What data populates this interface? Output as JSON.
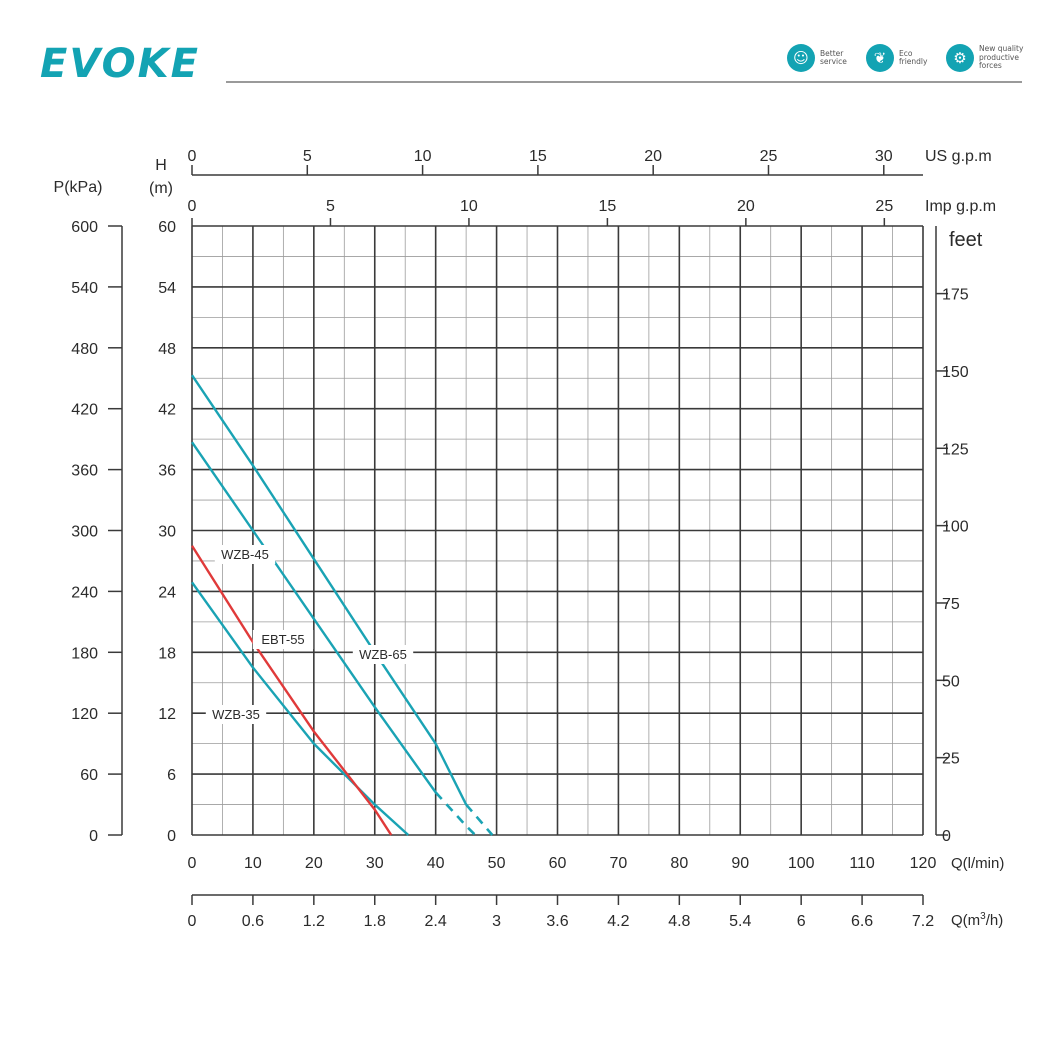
{
  "header": {
    "brand": "EVOKE",
    "features": [
      {
        "icon": "headset-icon",
        "label": "Better\nservice"
      },
      {
        "icon": "leaf-icon",
        "label": "Eco\nfriendly"
      },
      {
        "icon": "gear-icon",
        "label": "New quality\nproductive\nforces"
      }
    ],
    "brand_color": "#13a3b3"
  },
  "chart_data": {
    "type": "line",
    "grid": true,
    "axes": {
      "pressure": {
        "label": "P(kPa)",
        "ticks": [
          "600",
          "540",
          "480",
          "420",
          "360",
          "300",
          "240",
          "180",
          "120",
          "60",
          "0"
        ],
        "range": [
          0,
          600
        ]
      },
      "head": {
        "label_top": "H",
        "label_bottom": "(m)",
        "ticks": [
          "60",
          "54",
          "48",
          "42",
          "36",
          "30",
          "24",
          "18",
          "12",
          "6",
          "0"
        ],
        "range": [
          0,
          60
        ]
      },
      "feet": {
        "label": "feet",
        "ticks": [
          "175",
          "150",
          "125",
          "100",
          "75",
          "50",
          "25",
          "0"
        ]
      },
      "flow_lmin": {
        "label": "Q(l/min)",
        "ticks": [
          "0",
          "10",
          "20",
          "30",
          "40",
          "50",
          "60",
          "70",
          "80",
          "90",
          "100",
          "110",
          "120"
        ],
        "range": [
          0,
          120
        ]
      },
      "flow_m3h": {
        "label_prefix": "Q(m",
        "label_sup": "3",
        "label_suffix": "/h)",
        "ticks": [
          "0",
          "0.6",
          "1.2",
          "1.8",
          "2.4",
          "3",
          "3.6",
          "4.2",
          "4.8",
          "5.4",
          "6",
          "6.6",
          "7.2"
        ]
      },
      "us_gpm": {
        "label": "US  g.p.m",
        "ticks": [
          "0",
          "5",
          "10",
          "15",
          "20",
          "25",
          "30"
        ]
      },
      "imp_gpm": {
        "label": "Imp  g.p.m",
        "ticks": [
          "0",
          "5",
          "10",
          "15",
          "20",
          "25"
        ]
      }
    },
    "series": [
      {
        "name": "WZB-35",
        "color": "#1aa3b4",
        "x": [
          0,
          10,
          20,
          30,
          35.5
        ],
        "y": [
          24.9,
          16.5,
          9.0,
          3.0,
          0
        ]
      },
      {
        "name": "EBT-55",
        "color": "#e03a3a",
        "x": [
          0,
          10,
          20,
          30,
          32.7
        ],
        "y": [
          28.5,
          19.0,
          10.2,
          2.5,
          0
        ]
      },
      {
        "name": "WZB-45",
        "color": "#1aa3b4",
        "x": [
          0,
          10,
          20,
          30,
          40,
          45,
          46.5
        ],
        "y": [
          38.7,
          30.0,
          21.3,
          12.6,
          4.2,
          0.9,
          0
        ],
        "dashed_from_x": 43
      },
      {
        "name": "WZB-65",
        "color": "#1aa3b4",
        "x": [
          0,
          10,
          20,
          30,
          40,
          45,
          49.3
        ],
        "y": [
          45.3,
          36.4,
          27.2,
          18.0,
          9.0,
          3.0,
          0
        ],
        "dashed_from_x": 45
      }
    ]
  }
}
